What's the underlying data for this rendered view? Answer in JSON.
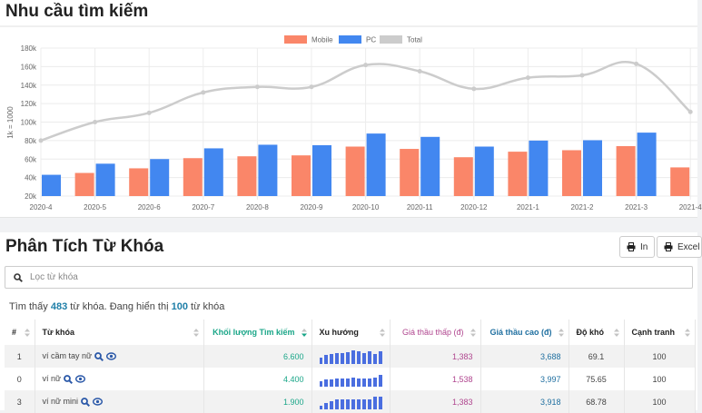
{
  "section1": {
    "title": "Nhu cầu tìm kiếm"
  },
  "chart_data": {
    "type": "bar",
    "categories": [
      "2020-4",
      "2020-5",
      "2020-6",
      "2020-7",
      "2020-8",
      "2020-9",
      "2020-10",
      "2020-11",
      "2020-12",
      "2021-1",
      "2021-2",
      "2021-3",
      "2021-4"
    ],
    "series": [
      {
        "name": "Mobile",
        "type": "bar",
        "color": "#fa8669",
        "values": [
          null,
          45,
          50,
          61,
          63,
          64,
          73.5,
          71,
          62,
          68,
          69.6,
          74,
          51
        ]
      },
      {
        "name": "PC",
        "type": "bar",
        "color": "#4287f0",
        "values": [
          43,
          55,
          60,
          71.6,
          75.5,
          75,
          87.6,
          84,
          73.5,
          80,
          80.4,
          88.6,
          null
        ]
      },
      {
        "name": "Total",
        "type": "line",
        "color": "#cccccc",
        "values": [
          80,
          100,
          110,
          132,
          138,
          138,
          161.7,
          155,
          136,
          148,
          150.6,
          163,
          111
        ]
      }
    ],
    "yticks": [
      "20k",
      "40k",
      "60k",
      "80k",
      "100k",
      "120k",
      "140k",
      "160k",
      "180k"
    ],
    "ylabel": "1k = 1000",
    "ylim": [
      20,
      180
    ],
    "unit": "k",
    "grid": true,
    "legend": "top-center"
  },
  "section2": {
    "title": "Phân Tích Từ Khóa",
    "print_label": "In",
    "excel_label": "Excel",
    "search_placeholder": "Lọc từ khóa",
    "found_prefix": "Tìm thấy ",
    "found_count": "483",
    "found_mid": " từ khóa. Đang hiển thị ",
    "shown_count": "100",
    "found_suffix": " từ khóa"
  },
  "table": {
    "headers": [
      "#",
      "Từ khóa",
      "Khối lượng Tìm kiếm",
      "Xu hướng",
      "Giá thầu thấp (đ)",
      "Giá thầu cao (đ)",
      "Độ khó",
      "Cạnh tranh"
    ],
    "rows": [
      {
        "rank": "1",
        "keyword": "ví cầm tay nữ",
        "volume": "6.600",
        "trend": [
          5,
          8,
          9,
          10,
          10,
          11,
          13,
          12,
          10,
          12,
          9,
          12
        ],
        "low": "1,383",
        "high": "3,688",
        "difficulty": "69.1",
        "competition": "100"
      },
      {
        "rank": "0",
        "keyword": "ví nữ",
        "volume": "4.400",
        "trend": [
          4,
          6,
          6,
          7,
          7,
          7,
          8,
          7,
          7,
          7,
          8,
          11
        ],
        "low": "1,538",
        "high": "3,997",
        "difficulty": "75.65",
        "competition": "100"
      },
      {
        "rank": "3",
        "keyword": "ví nữ mini",
        "volume": "1.900",
        "trend": [
          2,
          5,
          7,
          9,
          9,
          9,
          9,
          9,
          9,
          9,
          12,
          12
        ],
        "low": "1,383",
        "high": "3,918",
        "difficulty": "68.78",
        "competition": "100"
      }
    ]
  }
}
